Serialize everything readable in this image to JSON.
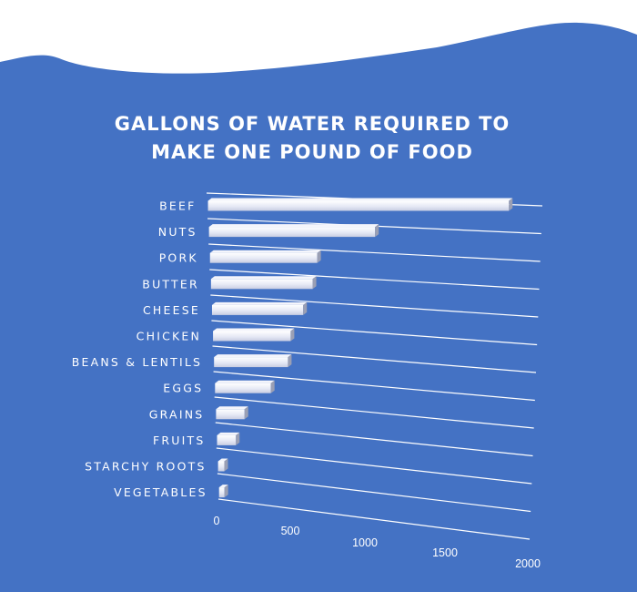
{
  "colors": {
    "background": "#4472C4",
    "sky": "#ffffff",
    "bar": "#e6e9f5",
    "text": "#ffffff"
  },
  "chart_data": {
    "type": "bar",
    "orientation": "horizontal",
    "title_lines": [
      "GALLONS OF WATER REQUIRED TO",
      "MAKE ONE POUND OF FOOD"
    ],
    "categories": [
      "BEEF",
      "NUTS",
      "PORK",
      "BUTTER",
      "CHEESE",
      "CHICKEN",
      "BEANS & LENTILS",
      "EGGS",
      "GRAINS",
      "FRUITS",
      "STARCHY ROOTS",
      "VEGETABLES"
    ],
    "values": [
      1800,
      1000,
      650,
      620,
      560,
      480,
      460,
      350,
      180,
      120,
      40,
      35
    ],
    "xticks": [
      0,
      500,
      1000,
      1500,
      2000
    ],
    "xlim": [
      0,
      2000
    ],
    "legend": "none",
    "grid": true,
    "style": "3d-perspective"
  }
}
